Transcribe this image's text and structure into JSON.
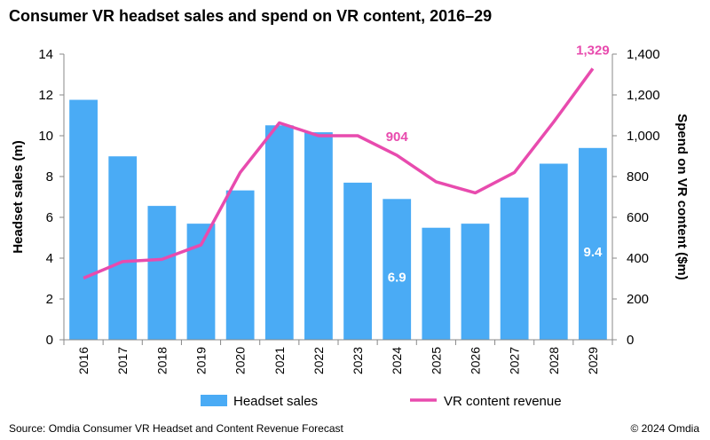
{
  "chart_data": {
    "type": "bar+line",
    "title": "Consumer VR headset sales and spend on VR content, 2016–29",
    "categories": [
      "2016",
      "2017",
      "2018",
      "2019",
      "2020",
      "2021",
      "2022",
      "2023",
      "2024",
      "2025",
      "2026",
      "2027",
      "2028",
      "2029"
    ],
    "series": [
      {
        "name": "Headset sales",
        "type": "bar",
        "axis": "left",
        "color": "#4AABF5",
        "values": [
          11.76,
          8.99,
          6.56,
          5.69,
          7.32,
          10.51,
          10.17,
          7.7,
          6.9,
          5.49,
          5.69,
          6.97,
          8.63,
          9.4
        ]
      },
      {
        "name": "VR content revenue",
        "type": "line",
        "axis": "right",
        "color": "#E84BAE",
        "values": [
          302,
          383,
          394,
          465,
          820,
          1063,
          1000,
          1000,
          904,
          774,
          720,
          820,
          1067,
          1329
        ]
      }
    ],
    "data_labels": [
      {
        "series": 0,
        "index": 8,
        "text": "6.9"
      },
      {
        "series": 0,
        "index": 13,
        "text": "9.4"
      },
      {
        "series": 1,
        "index": 8,
        "text": "904"
      },
      {
        "series": 1,
        "index": 13,
        "text": "1,329"
      }
    ],
    "ylabel_left": "Headset sales (m)",
    "ylabel_right": "Spend on VR content ($m)",
    "ylim_left": [
      0,
      14
    ],
    "ylim_right": [
      0,
      1400
    ],
    "yticks_left": [
      "0",
      "2",
      "4",
      "6",
      "8",
      "10",
      "12",
      "14"
    ],
    "yticks_right": [
      "0",
      "200",
      "400",
      "600",
      "800",
      "1,000",
      "1,200",
      "1,400"
    ],
    "grid": false,
    "legend_position": "bottom"
  },
  "source": "Source: Omdia Consumer VR Headset and Content Revenue Forecast",
  "copyright": "© 2024 Omdia"
}
